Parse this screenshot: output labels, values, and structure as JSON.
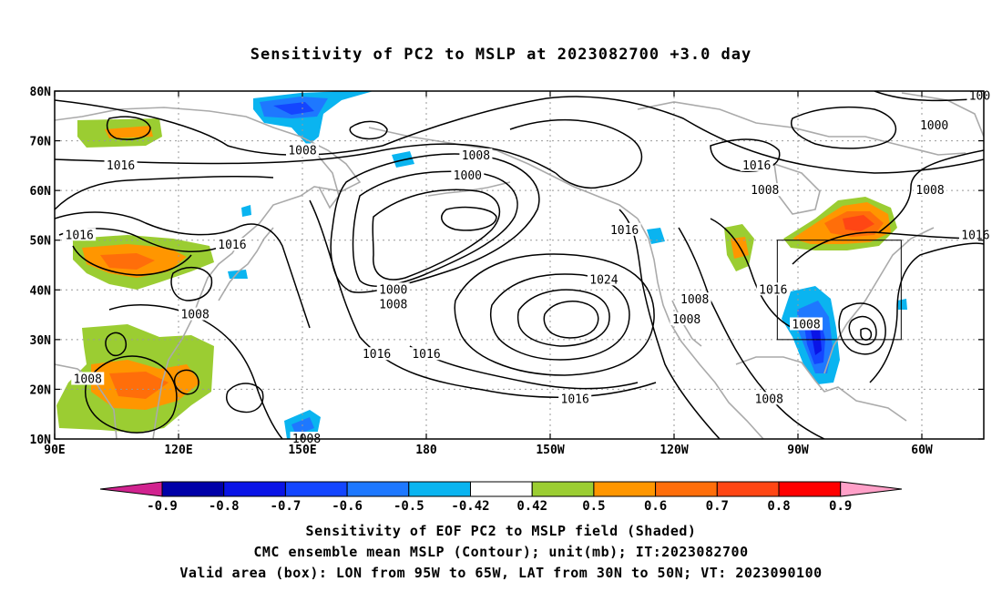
{
  "title": "Sensitivity of PC2 to MSLP at 2023082700 +3.0 day",
  "captions": [
    "Sensitivity of EOF PC2 to MSLP field (Shaded)",
    "CMC ensemble mean MSLP (Contour); unit(mb); IT:2023082700",
    "Valid area (box): LON from 95W to 65W, LAT from 30N to 50N; VT: 2023090100"
  ],
  "map": {
    "lon_labels": [
      "90E",
      "120E",
      "150E",
      "180",
      "150W",
      "120W",
      "90W",
      "60W"
    ],
    "lon_values": [
      90,
      120,
      150,
      180,
      210,
      240,
      270,
      300
    ],
    "lat_labels": [
      "10N",
      "20N",
      "30N",
      "40N",
      "50N",
      "60N",
      "70N",
      "80N"
    ],
    "lat_values": [
      10,
      20,
      30,
      40,
      50,
      60,
      70,
      80
    ],
    "lon_range": [
      90,
      315
    ],
    "lat_range": [
      10,
      80
    ],
    "valid_box": {
      "lon": [
        265,
        295
      ],
      "lat": [
        30,
        50
      ]
    }
  },
  "colorbar": {
    "labels": [
      "-0.9",
      "-0.8",
      "-0.7",
      "-0.6",
      "-0.5",
      "-0.42",
      "0.42",
      "0.5",
      "0.6",
      "0.7",
      "0.8",
      "0.9"
    ],
    "colors": [
      "#d1238f",
      "#0000a8",
      "#0a14e6",
      "#1446ff",
      "#1e78ff",
      "#0ab4f0",
      "#ffffff",
      "#9bcd32",
      "#ff9600",
      "#ff6e0a",
      "#ff4614",
      "#ff0000",
      "#ffa0c8"
    ]
  },
  "contour_labels": [
    {
      "text": "1016",
      "lon": 106,
      "lat": 65
    },
    {
      "text": "1008",
      "lon": 150,
      "lat": 68
    },
    {
      "text": "1008",
      "lon": 192,
      "lat": 67
    },
    {
      "text": "1000",
      "lon": 190,
      "lat": 63
    },
    {
      "text": "1016",
      "lon": 260,
      "lat": 65
    },
    {
      "text": "1008",
      "lon": 262,
      "lat": 60
    },
    {
      "text": "1000",
      "lon": 303,
      "lat": 73
    },
    {
      "text": "1008",
      "lon": 302,
      "lat": 60
    },
    {
      "text": "1016",
      "lon": 96,
      "lat": 51
    },
    {
      "text": "1016",
      "lon": 133,
      "lat": 49
    },
    {
      "text": "1016",
      "lon": 228,
      "lat": 52
    },
    {
      "text": "1024",
      "lon": 223,
      "lat": 42
    },
    {
      "text": "1000",
      "lon": 172,
      "lat": 40
    },
    {
      "text": "1008",
      "lon": 172,
      "lat": 37
    },
    {
      "text": "1008",
      "lon": 124,
      "lat": 35
    },
    {
      "text": "1016",
      "lon": 168,
      "lat": 27
    },
    {
      "text": "1016",
      "lon": 180,
      "lat": 27
    },
    {
      "text": "1008",
      "lon": 245,
      "lat": 38
    },
    {
      "text": "1008",
      "lon": 243,
      "lat": 34
    },
    {
      "text": "1016",
      "lon": 264,
      "lat": 40
    },
    {
      "text": "1008",
      "lon": 272,
      "lat": 33
    },
    {
      "text": "1016",
      "lon": 313,
      "lat": 51
    },
    {
      "text": "1008",
      "lon": 98,
      "lat": 22
    },
    {
      "text": "1016",
      "lon": 216,
      "lat": 18
    },
    {
      "text": "1008",
      "lon": 263,
      "lat": 18
    },
    {
      "text": "1008",
      "lon": 151,
      "lat": 10
    },
    {
      "text": "100",
      "lon": 314,
      "lat": 79
    }
  ]
}
